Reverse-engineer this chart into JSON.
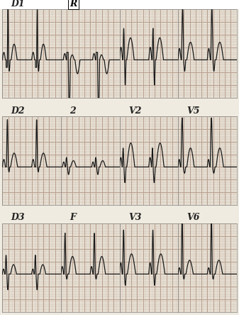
{
  "bg_color": "#e8e0d0",
  "grid_minor_color": "#c8b8a8",
  "grid_major_color": "#b8a090",
  "paper_color": "#f0ebe0",
  "trace_color": "#1a1a1a",
  "border_color": "#888888",
  "row_labels": [
    [
      "D1",
      "R",
      "",
      ""
    ],
    [
      "D2",
      "2",
      "V2",
      "V5"
    ],
    [
      "D3",
      "F",
      "V3",
      "V6"
    ]
  ],
  "figsize": [
    3.37,
    4.44
  ],
  "dpi": 100
}
